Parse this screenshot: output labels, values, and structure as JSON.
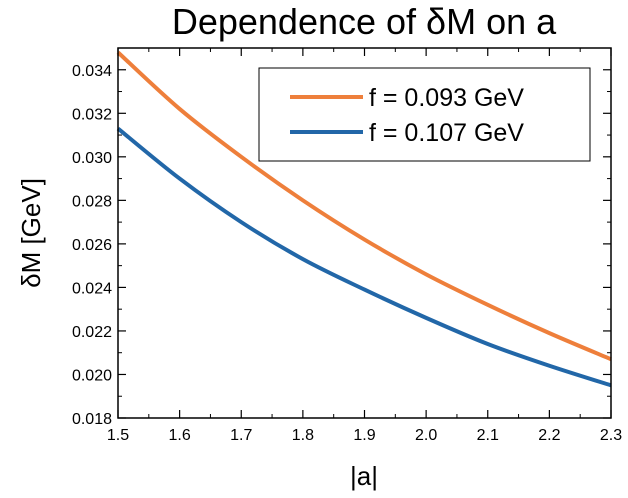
{
  "chart_data": {
    "type": "line",
    "title": "Dependence of δM on a",
    "xlabel": "|a|",
    "ylabel": "δM [GeV]",
    "xlim": [
      1.5,
      2.3
    ],
    "ylim": [
      0.018,
      0.035
    ],
    "xticks": [
      "1.5",
      "1.6",
      "1.7",
      "1.8",
      "1.9",
      "2.0",
      "2.1",
      "2.2",
      "2.3"
    ],
    "yticks": [
      "0.018",
      "0.020",
      "0.022",
      "0.024",
      "0.026",
      "0.028",
      "0.030",
      "0.032",
      "0.034"
    ],
    "grid": false,
    "legend_position": "top-right",
    "x": [
      1.5,
      1.6,
      1.7,
      1.8,
      1.9,
      2.0,
      2.1,
      2.2,
      2.3
    ],
    "series": [
      {
        "name": "f = 0.093 GeV",
        "color": "#ee7f3b",
        "values": [
          0.0348,
          0.0322,
          0.03,
          0.028,
          0.0262,
          0.0246,
          0.0232,
          0.0219,
          0.0207
        ]
      },
      {
        "name": "f = 0.107 GeV",
        "color": "#2267a8",
        "values": [
          0.0313,
          0.029,
          0.027,
          0.0253,
          0.0239,
          0.0226,
          0.0214,
          0.0204,
          0.0195
        ]
      }
    ]
  }
}
